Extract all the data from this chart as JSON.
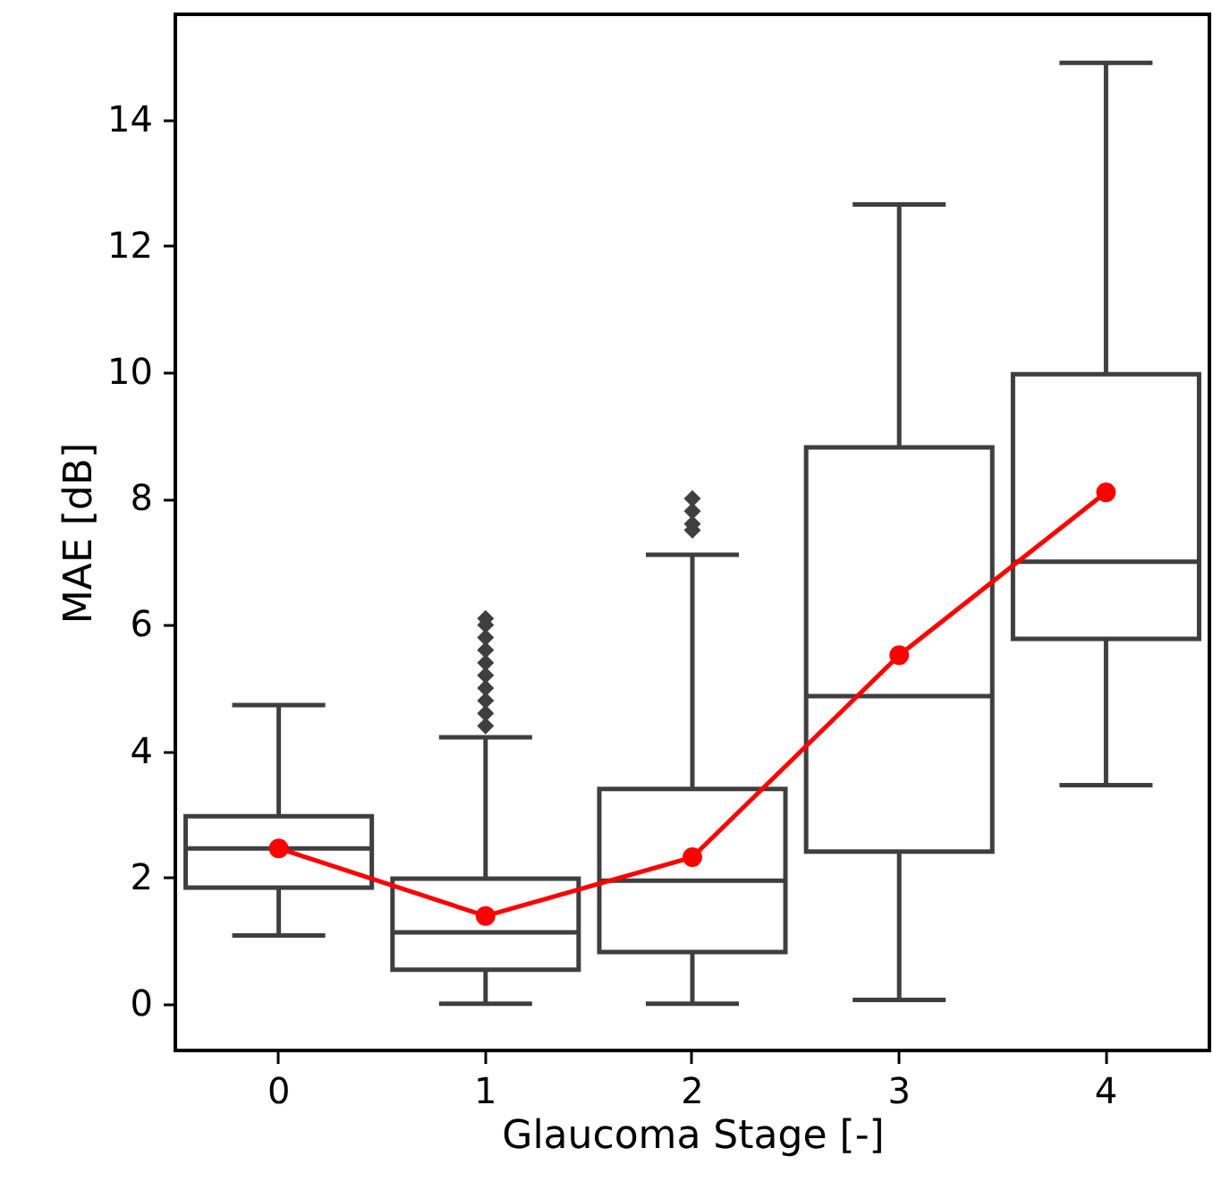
{
  "chart_data": {
    "type": "box",
    "xlabel": "Glaucoma Stage [-]",
    "ylabel": "MAE [dB]",
    "categories": [
      "0",
      "1",
      "2",
      "3",
      "4"
    ],
    "ylim": [
      -0.74,
      15.67
    ],
    "yticks": [
      0,
      2,
      4,
      6,
      8,
      10,
      12,
      14
    ],
    "marker": "circle",
    "series": [
      {
        "color": "#3f3f3f",
        "boxes": [
          {
            "low": 1.08,
            "q1": 1.84,
            "median": 2.46,
            "q3": 2.97,
            "high": 4.73
          },
          {
            "low": 0,
            "q1": 0.54,
            "median": 1.13,
            "q3": 1.98,
            "high": 4.22,
            "outliers": [
              4.4,
              4.6,
              4.8,
              5.0,
              5.2,
              5.4,
              5.6,
              5.8,
              6.0,
              6.1
            ]
          },
          {
            "low": 0,
            "q1": 0.82,
            "median": 1.95,
            "q3": 3.4,
            "high": 7.11,
            "outliers": [
              7.5,
              7.6,
              7.8,
              8.0
            ]
          },
          {
            "low": 0.06,
            "q1": 2.41,
            "median": 4.87,
            "q3": 8.81,
            "high": 12.66
          },
          {
            "low": 3.46,
            "q1": 5.78,
            "median": 7.0,
            "q3": 9.97,
            "high": 14.9
          }
        ]
      },
      {
        "type": "line",
        "color": "#ff0000",
        "values": [
          2.46,
          1.39,
          2.32,
          5.52,
          8.1
        ]
      }
    ]
  }
}
